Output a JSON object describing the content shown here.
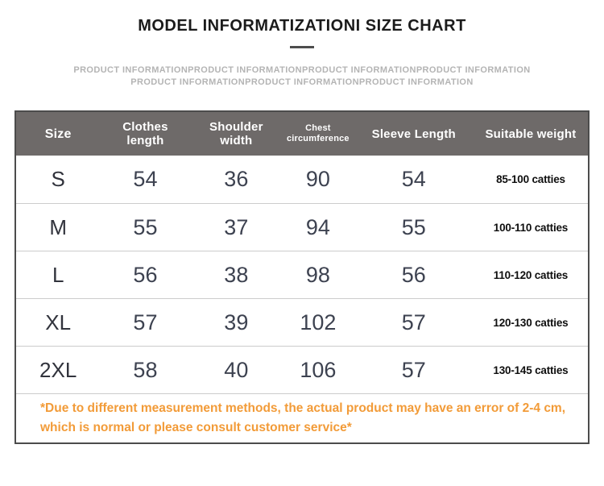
{
  "title": "MODEL INFORMATIZATIONI SIZE CHART",
  "watermark": {
    "line1": "PRODUCT INFORMATIONPRODUCT INFORMATIONPRODUCT INFORMATIONPRODUCT INFORMATION",
    "line2": "PRODUCT INFORMATIONPRODUCT INFORMATIONPRODUCT INFORMATION"
  },
  "table": {
    "columns": [
      "Size",
      "Clothes\nlength",
      "Shoulder\nwidth",
      "Chest\ncircumference",
      "Sleeve Length",
      "Suitable weight"
    ],
    "rows": [
      {
        "size": "S",
        "clothes_length": "54",
        "shoulder_width": "36",
        "chest_circumference": "90",
        "sleeve_length": "54",
        "suitable_weight": "85-100 catties"
      },
      {
        "size": "M",
        "clothes_length": "55",
        "shoulder_width": "37",
        "chest_circumference": "94",
        "sleeve_length": "55",
        "suitable_weight": "100-110 catties"
      },
      {
        "size": "L",
        "clothes_length": "56",
        "shoulder_width": "38",
        "chest_circumference": "98",
        "sleeve_length": "56",
        "suitable_weight": "110-120 catties"
      },
      {
        "size": "XL",
        "clothes_length": "57",
        "shoulder_width": "39",
        "chest_circumference": "102",
        "sleeve_length": "57",
        "suitable_weight": "120-130 catties"
      },
      {
        "size": "2XL",
        "clothes_length": "58",
        "shoulder_width": "40",
        "chest_circumference": "106",
        "sleeve_length": "57",
        "suitable_weight": "130-145 catties"
      }
    ]
  },
  "footnote": "*Due to different measurement methods, the actual product may have an error of 2-4 cm, which is normal or please consult customer service*",
  "colors": {
    "header_bg": "#6e6a69",
    "header_text": "#ffffff",
    "footnote_orange": "#f29b38",
    "watermark_gray": "#b4b4b4",
    "number_text": "#3d4250",
    "table_border": "#4c4c4c"
  },
  "chart_data": {
    "type": "table",
    "title": "MODEL INFORMATIZATIONI SIZE CHART",
    "columns": [
      "Size",
      "Clothes length",
      "Shoulder width",
      "Chest circumference",
      "Sleeve Length",
      "Suitable weight"
    ],
    "rows": [
      [
        "S",
        54,
        36,
        90,
        54,
        "85-100 catties"
      ],
      [
        "M",
        55,
        37,
        94,
        55,
        "100-110 catties"
      ],
      [
        "L",
        56,
        38,
        98,
        56,
        "110-120 catties"
      ],
      [
        "XL",
        57,
        39,
        102,
        57,
        "120-130 catties"
      ],
      [
        "2XL",
        58,
        40,
        106,
        57,
        "130-145 catties"
      ]
    ],
    "note": "*Due to different measurement methods, the actual product may have an error of 2-4 cm, which is normal or please consult customer service*"
  }
}
